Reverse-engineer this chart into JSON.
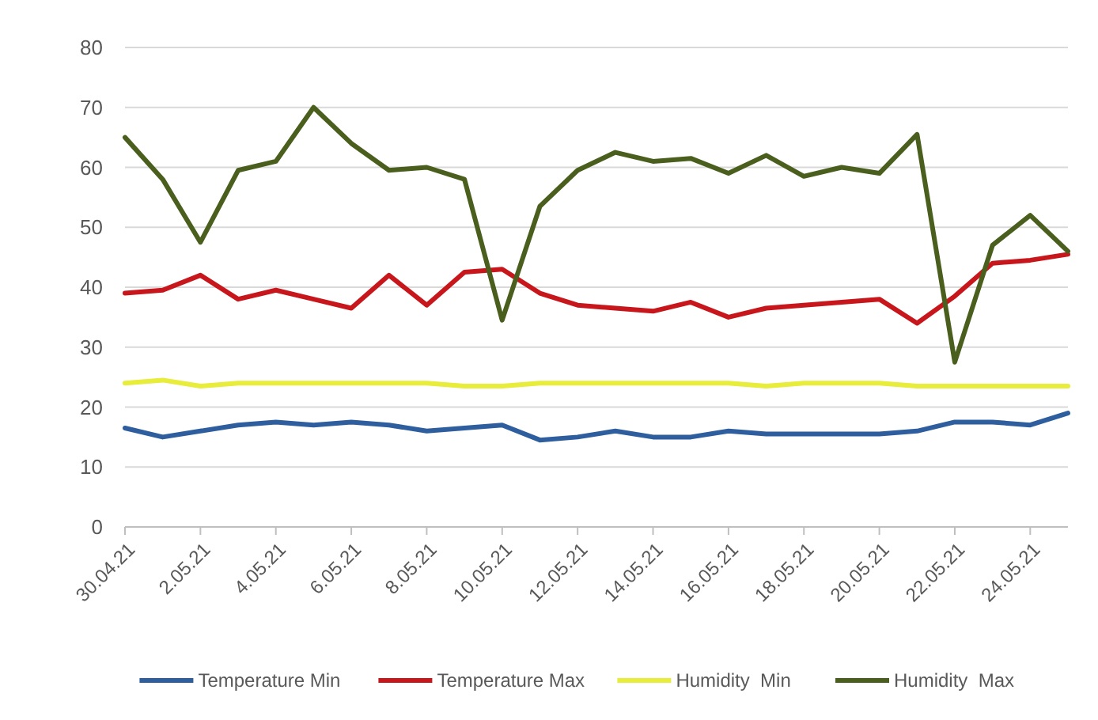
{
  "chart_data": {
    "type": "line",
    "categories": [
      "30.04.21",
      null,
      "2.05.21",
      null,
      "4.05.21",
      null,
      "6.05.21",
      null,
      "8.05.21",
      null,
      "10.05.21",
      null,
      "12.05.21",
      null,
      "14.05.21",
      null,
      "16.05.21",
      null,
      "18.05.21",
      null,
      "20.05.21",
      null,
      "22.05.21",
      null,
      "24.05.21",
      null
    ],
    "series": [
      {
        "name": "Temperature Min",
        "color": "#2e5e9e",
        "values": [
          16.5,
          15,
          16,
          17,
          17.5,
          17,
          17.5,
          17,
          16,
          16.5,
          17,
          14.5,
          15,
          16,
          15,
          15,
          16,
          15.5,
          15.5,
          15.5,
          15.5,
          16,
          17.5,
          17.5,
          17,
          19
        ]
      },
      {
        "name": "Temperature Max",
        "color": "#c8171c",
        "values": [
          39,
          39.5,
          42,
          38,
          39.5,
          38,
          36.5,
          42,
          37,
          42.5,
          43,
          39,
          37,
          36.5,
          36,
          37.5,
          35,
          36.5,
          37,
          37.5,
          38,
          34,
          38.5,
          44,
          44.5,
          45.5
        ]
      },
      {
        "name": "Humidity  Min",
        "color": "#e8ec3a",
        "values": [
          24,
          24.5,
          23.5,
          24,
          24,
          24,
          24,
          24,
          24,
          23.5,
          23.5,
          24,
          24,
          24,
          24,
          24,
          24,
          23.5,
          24,
          24,
          24,
          23.5,
          23.5,
          23.5,
          23.5,
          23.5
        ]
      },
      {
        "name": "Humidity  Max",
        "color": "#4a5e1e",
        "values": [
          65,
          58,
          47.5,
          59.5,
          61,
          70,
          64,
          59.5,
          60,
          58,
          34.5,
          53.5,
          59.5,
          62.5,
          61,
          61.5,
          59,
          62,
          58.5,
          60,
          59,
          65.5,
          27.5,
          47,
          52,
          46
        ]
      }
    ],
    "ylim": [
      0,
      80
    ],
    "yticks": [
      0,
      10,
      20,
      30,
      40,
      50,
      60,
      70,
      80
    ],
    "grid": "y",
    "legend": "bottom",
    "marker": "none",
    "line_style": "solid"
  }
}
